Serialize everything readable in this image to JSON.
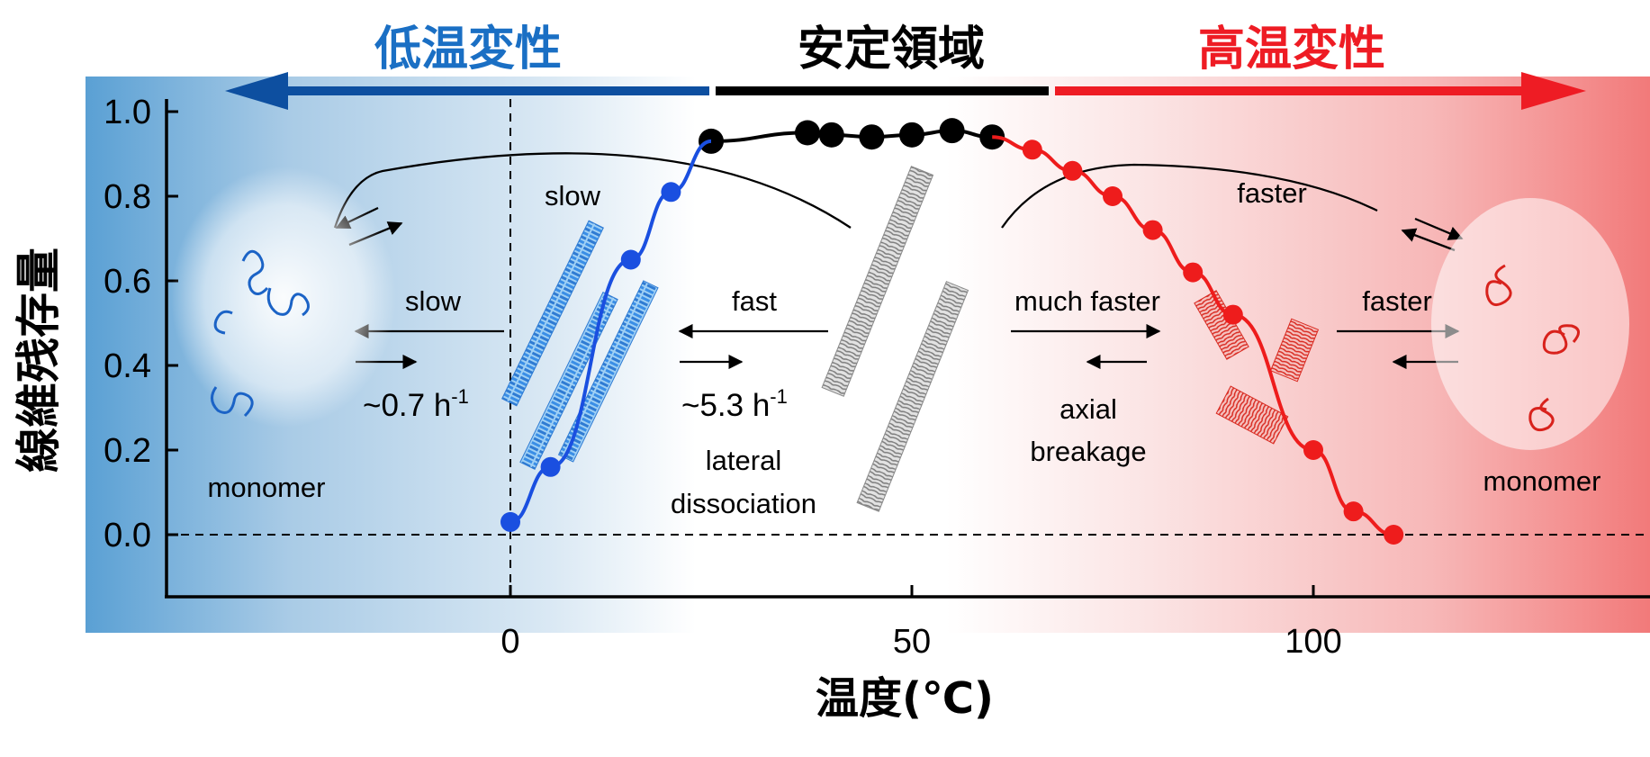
{
  "chart_data": {
    "type": "line",
    "title": "",
    "xlabel": "温度(℃)",
    "ylabel": "線維残存量",
    "xlim": [
      -42,
      140
    ],
    "ylim": [
      -0.15,
      1.05
    ],
    "x_ticks": [
      0,
      50,
      100
    ],
    "y_ticks": [
      "1.0",
      "0.8",
      "0.6",
      "0.4",
      "0.2",
      "0.0"
    ],
    "y_tick_values": [
      1.0,
      0.8,
      0.6,
      0.4,
      0.2,
      0.0
    ],
    "grid": false,
    "reference_lines": [
      {
        "axis": "x",
        "value": 0,
        "style": "dashed"
      },
      {
        "axis": "y",
        "value": 0,
        "style": "dashed"
      }
    ],
    "series": [
      {
        "color": "#1a4fe0",
        "x": [
          0,
          5,
          15,
          20
        ],
        "y": [
          0.03,
          0.16,
          0.65,
          0.81
        ]
      },
      {
        "color": "#000000",
        "x": [
          25,
          37,
          40,
          45,
          50,
          55,
          60
        ],
        "y": [
          0.93,
          0.95,
          0.945,
          0.94,
          0.945,
          0.955,
          0.94
        ]
      },
      {
        "color": "#ee1c1c",
        "x": [
          65,
          70,
          75,
          80,
          85,
          90,
          100,
          105,
          110
        ],
        "y": [
          0.91,
          0.86,
          0.8,
          0.72,
          0.62,
          0.52,
          0.2,
          0.055,
          0.0
        ]
      }
    ],
    "region_labels": [
      {
        "text": "低温変性",
        "color": "#1a6fc4"
      },
      {
        "text": "安定領域",
        "color": "#000000"
      },
      {
        "text": "高温変性",
        "color": "#ee1c24"
      }
    ],
    "annotations": {
      "slow_top": "slow",
      "faster_top": "faster",
      "slow_left": "slow",
      "rate_left": "~0.7 h",
      "rate_left_sup": "-1",
      "fast": "fast",
      "rate_mid": "~5.3 h",
      "rate_mid_sup": "-1",
      "lateral": "lateral",
      "dissociation": "dissociation",
      "much_faster": "much faster",
      "axial": "axial",
      "breakage": "breakage",
      "faster_right": "faster",
      "monomer_left": "monomer",
      "monomer_right": "monomer"
    }
  },
  "colors": {
    "low_temp": "#1a6fc4",
    "stable": "#000000",
    "high_temp": "#ee1c24",
    "fibril_blue": "#3a8ee6",
    "fibril_gray": "#9a9a9a",
    "fibril_red": "#e8352b"
  }
}
